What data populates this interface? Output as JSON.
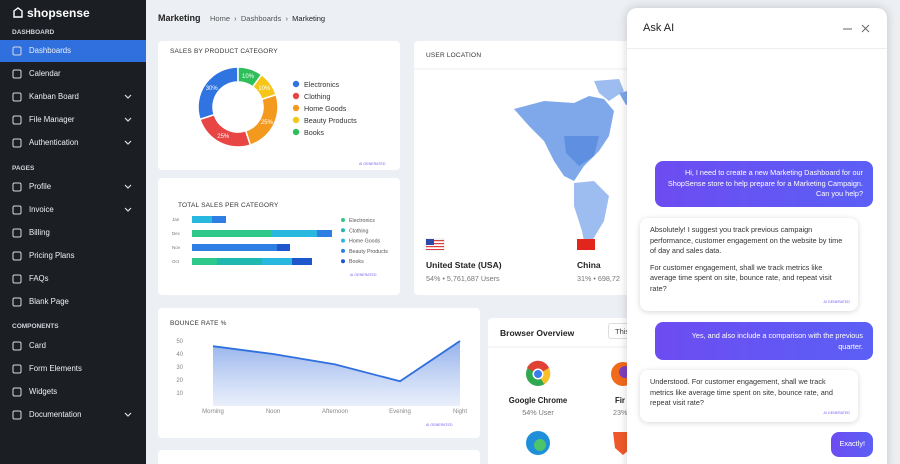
{
  "sidebar": {
    "brand": "shopsense",
    "sections": [
      {
        "title": "DASHBOARD",
        "items": [
          "Dashboards",
          "Calendar",
          "Kanban Board",
          "File Manager",
          "Authentication"
        ]
      },
      {
        "title": "PAGES",
        "items": [
          "Profile",
          "Invoice",
          "Billing",
          "Pricing Plans",
          "FAQs",
          "Blank Page"
        ]
      },
      {
        "title": "COMPONENTS",
        "items": [
          "Card",
          "Form Elements",
          "Widgets",
          "Documentation"
        ]
      }
    ]
  },
  "header": {
    "title": "Marketing",
    "breadcrumb": [
      "Home",
      "Dashboards",
      "Marketing"
    ]
  },
  "ai_badge": "AI GENERATED",
  "sales_by_category": {
    "type": "pie",
    "title": "SALES BY PRODUCT CATEGORY",
    "categories": [
      "Electronics",
      "Clothing",
      "Home Goods",
      "Beauty Products",
      "Books"
    ],
    "values": [
      30,
      25,
      25,
      10,
      10
    ],
    "value_labels": [
      "30%",
      "25%",
      "25%",
      "10%",
      "10%"
    ],
    "colors": [
      "#2f74e0",
      "#e84545",
      "#f39a1e",
      "#f5c518",
      "#2fbf5a"
    ]
  },
  "total_sales": {
    "type": "bar",
    "title": "TOTAL SALES PER CATEGORY",
    "categories": [
      "Jan",
      "Dec",
      "Nov",
      "Oct"
    ],
    "series": [
      {
        "name": "Electronics",
        "color": "#2ec98a",
        "values": [
          0,
          80,
          0,
          25
        ]
      },
      {
        "name": "Clothing",
        "color": "#1fb8b0",
        "values": [
          0,
          0,
          0,
          45
        ]
      },
      {
        "name": "Home Goods",
        "color": "#28b8df",
        "values": [
          20,
          45,
          0,
          30
        ]
      },
      {
        "name": "Beauty Products",
        "color": "#2f7ee3",
        "values": [
          14,
          15,
          85,
          0
        ]
      },
      {
        "name": "Books",
        "color": "#1f56cc",
        "values": [
          0,
          0,
          13,
          20
        ]
      }
    ]
  },
  "user_location": {
    "title": "USER LOCATION",
    "countries": [
      {
        "name": "United State (USA)",
        "stats": "54% • 5,761,687 Users"
      },
      {
        "name": "China",
        "stats": "31% • 698,72"
      }
    ]
  },
  "bounce_rate": {
    "type": "line",
    "title": "BOUNCE RATE %",
    "categories": [
      "Morning",
      "Noon",
      "Afternoon",
      "Evening",
      "Night"
    ],
    "values": [
      46,
      40,
      32,
      19,
      50
    ],
    "ylim": [
      0,
      55
    ],
    "yticks": [
      10,
      20,
      30,
      40,
      50
    ],
    "color": "#2f6fde"
  },
  "browser_overview": {
    "title": "Browser Overview",
    "period": "This",
    "browsers": [
      {
        "name": "Google Chrome",
        "share": "54% User"
      },
      {
        "name": "Fir",
        "share": "23%"
      }
    ]
  },
  "chat": {
    "title": "Ask AI",
    "messages": [
      "Hi, I need to create a new Marketing Dashboard for our ShopSense store to help prepare for a Marketing Campaign. Can you help?",
      [
        "Absolutely! I suggest you track previous campaign performance, customer engagement on the website by time of day and sales data.",
        "For customer engagement, shall we track metrics like average time spent on site, bounce rate, and repeat visit rate?"
      ],
      "Yes, and also include a comparison with the previous quarter.",
      "Understood. For customer engagement, shall we track metrics like average time spent on site, bounce rate, and repeat visit rate?",
      "Exactly!"
    ]
  }
}
